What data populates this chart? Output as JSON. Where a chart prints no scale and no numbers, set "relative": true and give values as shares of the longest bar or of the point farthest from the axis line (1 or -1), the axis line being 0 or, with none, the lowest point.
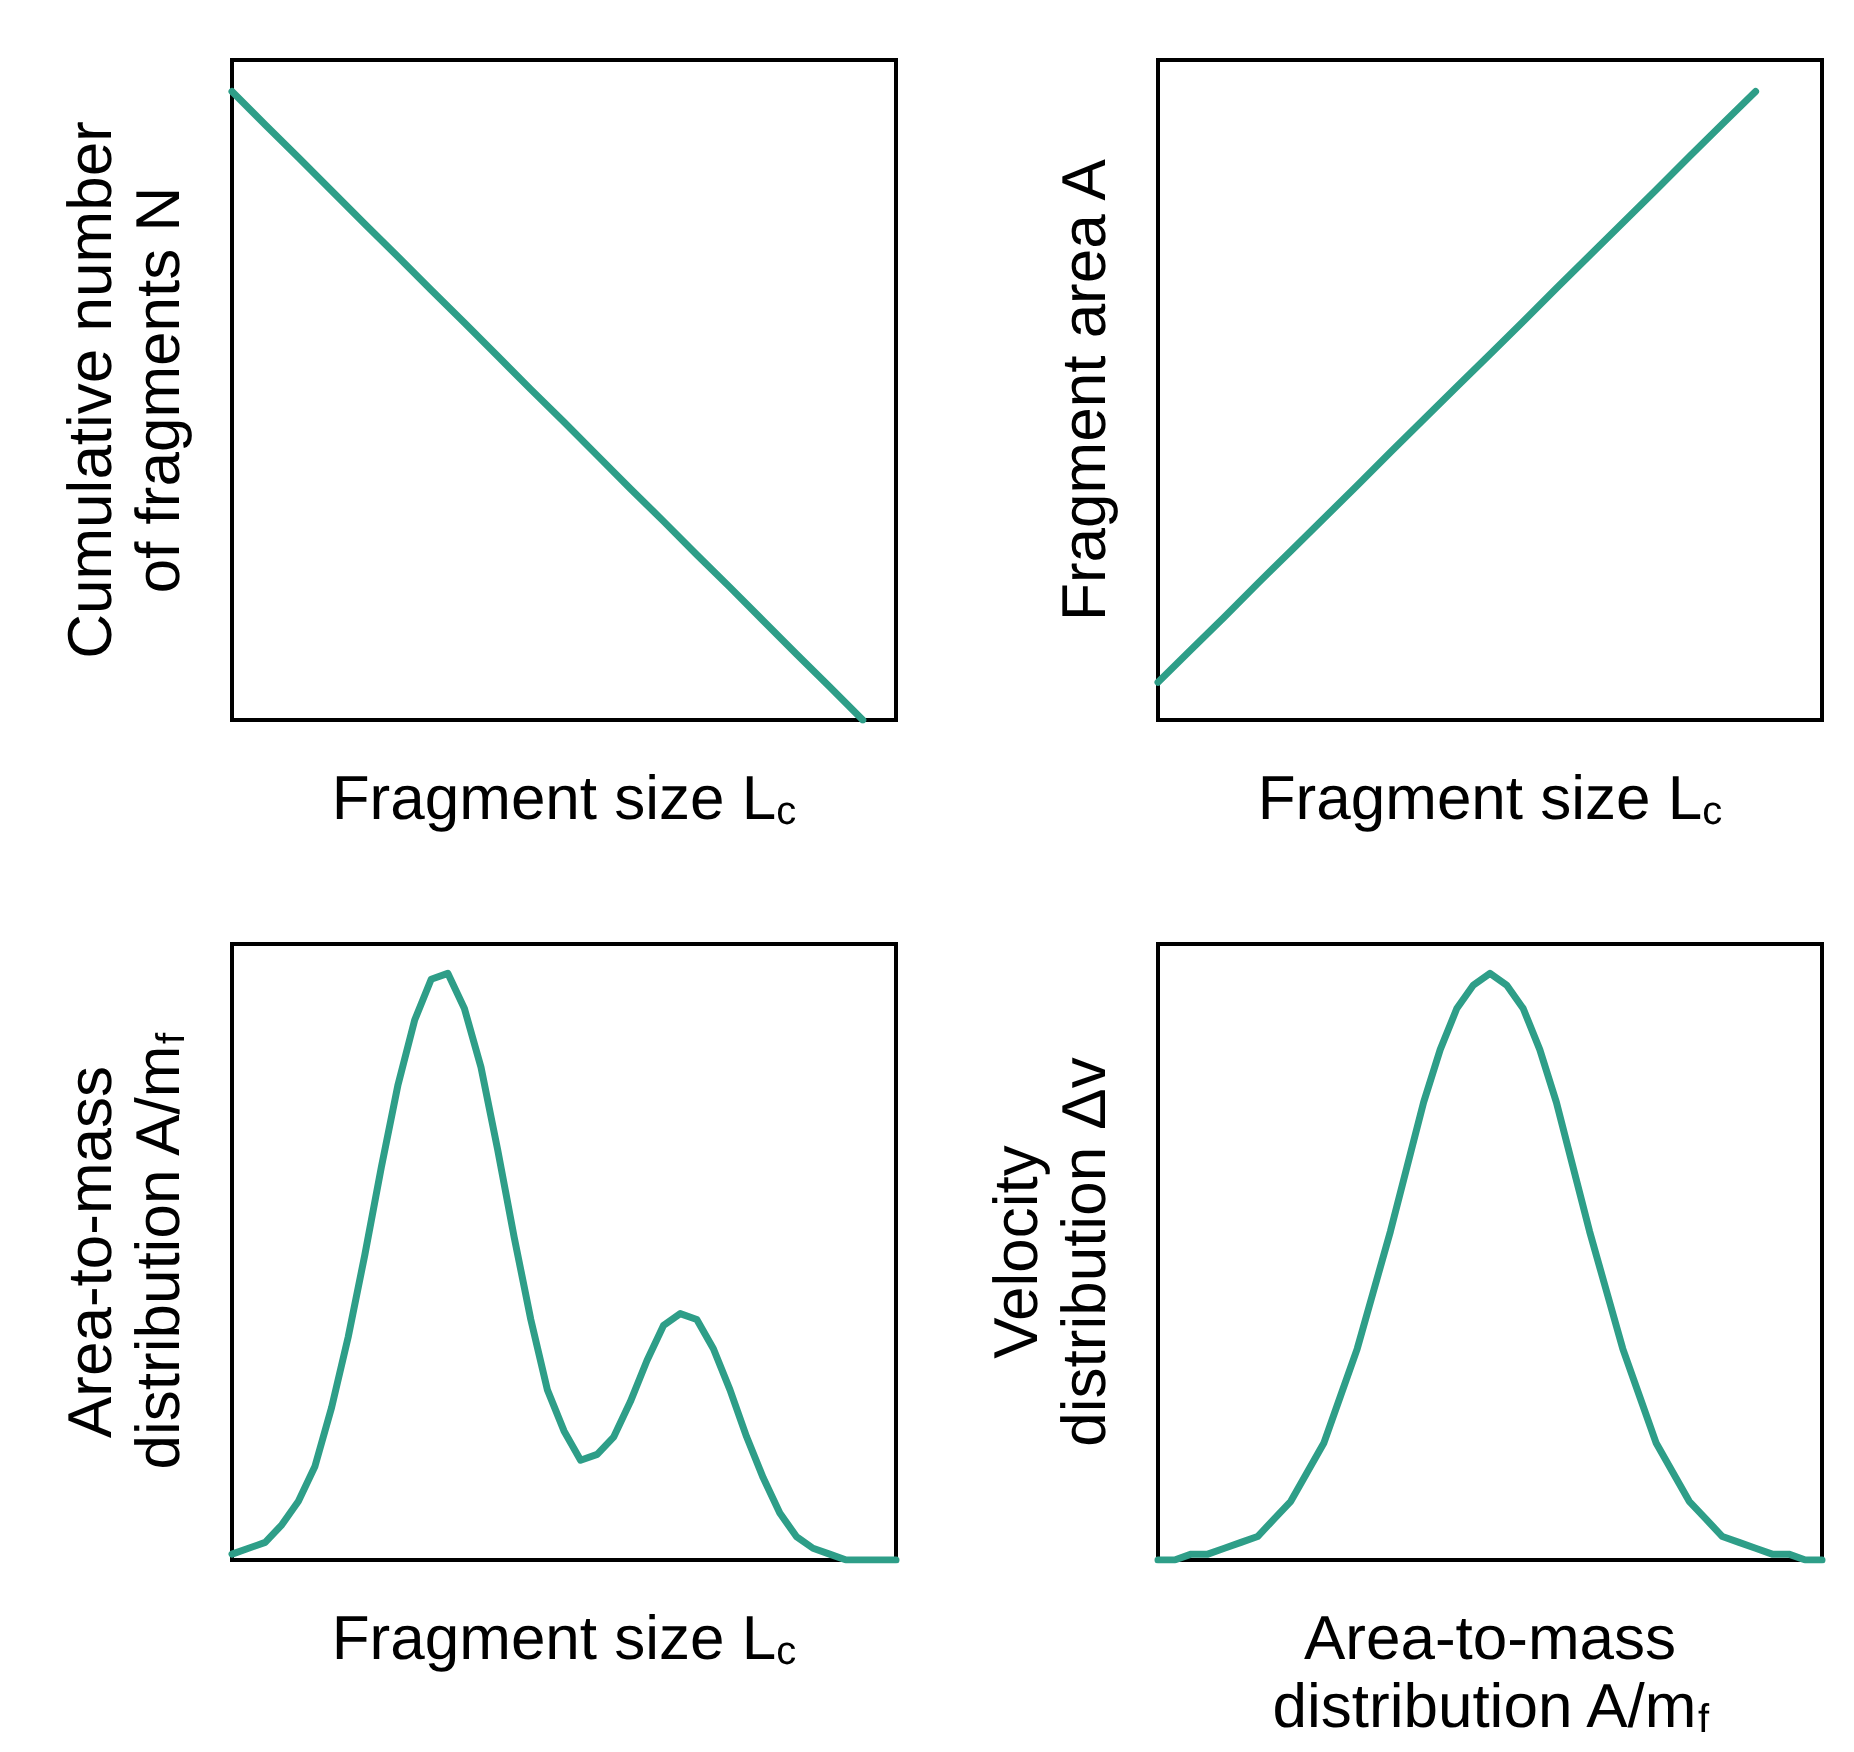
{
  "chart_data": [
    {
      "type": "line",
      "relative": true,
      "xlabel": "Fragment size L$_{c}$",
      "ylabel": "Cumulative number of fragments N",
      "color": "#2e9e88",
      "categories": [
        null,
        null,
        null,
        null,
        null,
        null,
        null,
        null,
        null,
        null,
        null,
        null,
        null,
        null,
        null,
        null,
        null,
        null,
        null,
        null,
        null
      ],
      "values": [
        1,
        0.947,
        0.895,
        0.842,
        0.789,
        0.737,
        0.684,
        0.632,
        0.579,
        0.526,
        0.474,
        0.421,
        0.368,
        0.316,
        0.263,
        0.211,
        0.158,
        0.105,
        0.053,
        0,
        null
      ]
    },
    {
      "type": "line",
      "relative": true,
      "xlabel": "Fragment size L$_{c}$",
      "ylabel": "Fragment area A",
      "color": "#2e9e88",
      "categories": [
        null,
        null,
        null,
        null,
        null,
        null,
        null,
        null,
        null,
        null,
        null,
        null,
        null,
        null,
        null,
        null,
        null,
        null,
        null,
        null,
        null
      ],
      "values": [
        0.06,
        0.112,
        0.164,
        0.217,
        0.269,
        0.321,
        0.373,
        0.426,
        0.478,
        0.53,
        0.582,
        0.634,
        0.687,
        0.739,
        0.791,
        0.843,
        0.896,
        0.948,
        1,
        null,
        null
      ]
    },
    {
      "type": "line",
      "relative": true,
      "xlabel": "Fragment size L$_{c}$",
      "ylabel": "Area-to-mass distribution A/m$_{f}$",
      "color": "#2e9e88",
      "categories": [
        null,
        null,
        null,
        null,
        null,
        null,
        null,
        null,
        null,
        null,
        null,
        null,
        null,
        null,
        null,
        null,
        null,
        null,
        null,
        null,
        null,
        null,
        null,
        null,
        null,
        null,
        null,
        null,
        null,
        null,
        null,
        null,
        null,
        null,
        null,
        null,
        null,
        null,
        null,
        null,
        null
      ],
      "values": [
        0.01,
        0.02,
        0.03,
        0.06,
        0.1,
        0.16,
        0.26,
        0.38,
        0.52,
        0.67,
        0.81,
        0.92,
        0.99,
        1,
        0.94,
        0.84,
        0.7,
        0.55,
        0.41,
        0.29,
        0.22,
        0.17,
        0.18,
        0.21,
        0.27,
        0.34,
        0.4,
        0.42,
        0.41,
        0.36,
        0.29,
        0.21,
        0.14,
        0.08,
        0.04,
        0.02,
        0.01,
        0,
        0,
        0,
        0
      ]
    },
    {
      "type": "line",
      "relative": true,
      "xlabel": "Area-to-mass distribution A/m$_{f}$",
      "ylabel": "Velocity distribution Δv",
      "color": "#2e9e88",
      "categories": [
        null,
        null,
        null,
        null,
        null,
        null,
        null,
        null,
        null,
        null,
        null,
        null,
        null,
        null,
        null,
        null,
        null,
        null,
        null,
        null,
        null,
        null,
        null,
        null,
        null,
        null,
        null,
        null,
        null,
        null,
        null,
        null,
        null,
        null,
        null,
        null,
        null,
        null,
        null,
        null,
        null
      ],
      "values": [
        0,
        0,
        0.01,
        0.01,
        0.02,
        0.03,
        0.04,
        0.07,
        0.1,
        0.15,
        0.2,
        0.28,
        0.36,
        0.46,
        0.56,
        0.67,
        0.78,
        0.87,
        0.94,
        0.98,
        1,
        0.98,
        0.94,
        0.87,
        0.78,
        0.67,
        0.56,
        0.46,
        0.36,
        0.28,
        0.2,
        0.15,
        0.1,
        0.07,
        0.04,
        0.03,
        0.02,
        0.01,
        0.01,
        0,
        0
      ]
    }
  ]
}
